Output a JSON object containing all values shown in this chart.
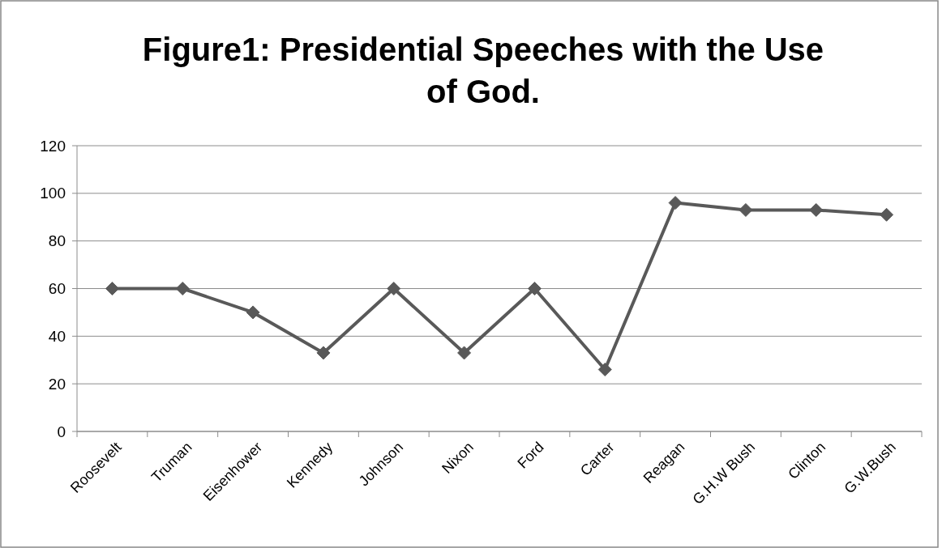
{
  "chart_data": {
    "type": "line",
    "title": "Figure1: Presidential Speeches with the Use of God.",
    "categories": [
      "Roosevelt",
      "Truman",
      "Eisenhower",
      "Kennedy",
      "Johnson",
      "Nixon",
      "Ford",
      "Carter",
      "Reagan",
      "G.H.W Bush",
      "Clinton",
      "G.W.Bush"
    ],
    "series": [
      {
        "color": "#595959",
        "values": [
          60,
          60,
          50,
          33,
          60,
          33,
          60,
          26,
          96,
          93,
          93,
          91
        ]
      }
    ],
    "ylim": [
      0,
      120
    ],
    "yticks": [
      0,
      20,
      40,
      60,
      80,
      100,
      120
    ],
    "grid": "y",
    "marker": "diamond",
    "line_style": "solid"
  }
}
